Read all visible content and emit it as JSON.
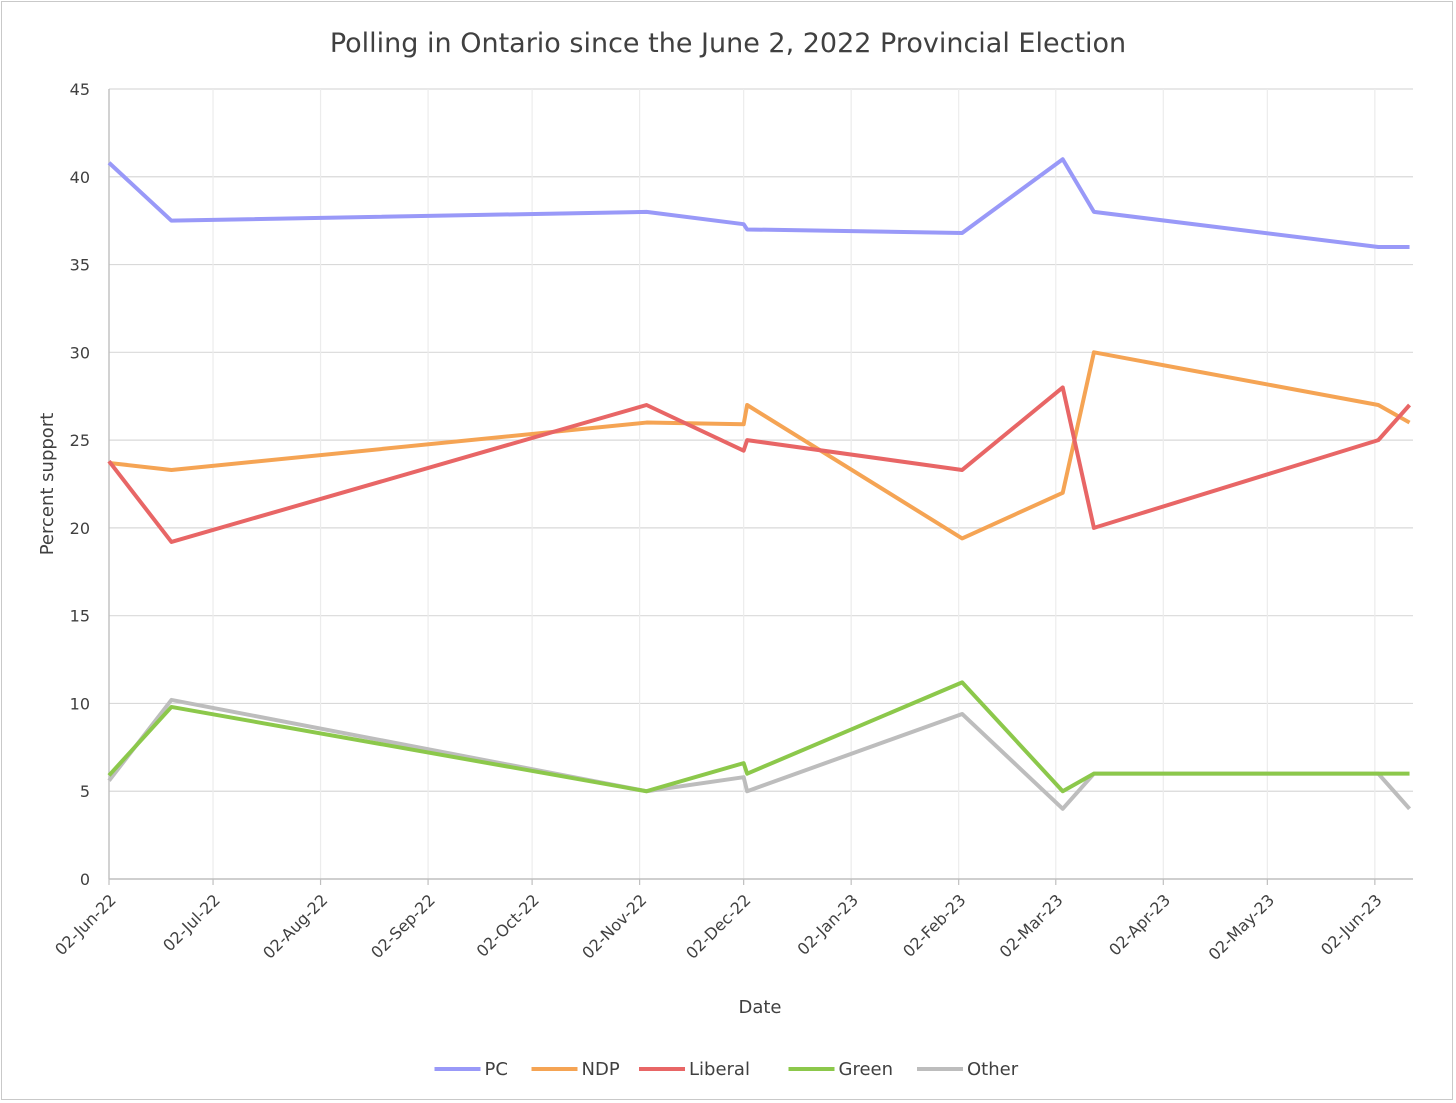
{
  "chart_data": {
    "type": "line",
    "title": "Polling in Ontario since the June 2, 2022 Provincial Election",
    "xlabel": "Date",
    "ylabel": "Percent support",
    "ylim": [
      0,
      45
    ],
    "yticks": [
      "0",
      "5",
      "10",
      "15",
      "20",
      "25",
      "30",
      "35",
      "40",
      "45"
    ],
    "xlim": [
      "2022-06-02",
      "2023-06-13"
    ],
    "xticks": [
      {
        "date": "2022-06-02",
        "label": "02-Jun-22"
      },
      {
        "date": "2022-07-02",
        "label": "02-Jul-22"
      },
      {
        "date": "2022-08-02",
        "label": "02-Aug-22"
      },
      {
        "date": "2022-09-02",
        "label": "02-Sep-22"
      },
      {
        "date": "2022-10-02",
        "label": "02-Oct-22"
      },
      {
        "date": "2022-11-02",
        "label": "02-Nov-22"
      },
      {
        "date": "2022-12-02",
        "label": "02-Dec-22"
      },
      {
        "date": "2023-01-02",
        "label": "02-Jan-23"
      },
      {
        "date": "2023-02-02",
        "label": "02-Feb-23"
      },
      {
        "date": "2023-03-02",
        "label": "02-Mar-23"
      },
      {
        "date": "2023-04-02",
        "label": "02-Apr-23"
      },
      {
        "date": "2023-05-02",
        "label": "02-May-23"
      },
      {
        "date": "2023-06-02",
        "label": "02-Jun-23"
      }
    ],
    "grid": true,
    "legend_position": "bottom",
    "x": [
      "2022-06-02",
      "2022-06-20",
      "2022-11-04",
      "2022-12-02",
      "2022-12-03",
      "2023-02-03",
      "2023-03-04",
      "2023-03-13",
      "2023-06-03",
      "2023-06-12"
    ],
    "series": [
      {
        "name": "PC",
        "color": "#9999f8",
        "values": [
          40.8,
          37.5,
          38,
          37.3,
          37,
          36.8,
          41,
          38,
          36,
          36
        ]
      },
      {
        "name": "NDP",
        "color": "#f5a454",
        "values": [
          23.7,
          23.3,
          26,
          25.9,
          27,
          19.4,
          22,
          30,
          27,
          26
        ]
      },
      {
        "name": "Liberal",
        "color": "#e86666",
        "values": [
          23.8,
          19.2,
          27,
          24.4,
          25,
          23.3,
          28,
          20,
          25,
          27
        ]
      },
      {
        "name": "Green",
        "color": "#8cc84b",
        "values": [
          5.9,
          9.8,
          5,
          6.6,
          6,
          11.2,
          5,
          6,
          6,
          6
        ]
      },
      {
        "name": "Other",
        "color": "#bdbdbd",
        "values": [
          5.6,
          10.2,
          5,
          5.8,
          5,
          9.4,
          4,
          6,
          6,
          4
        ]
      }
    ]
  }
}
